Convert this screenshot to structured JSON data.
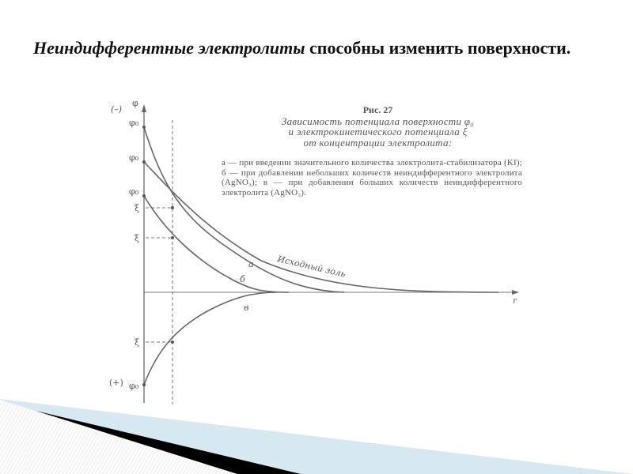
{
  "slide": {
    "title_italic": "Неиндифферентные электролиты",
    "title_rest": " способны изменить поверхности."
  },
  "figure": {
    "number": "Рис. 27",
    "caption_lines": [
      "Зависимость потенциала поверхности φ₀",
      "и электрокинетического потенциала ξ",
      "от концентрации электролита:"
    ],
    "description": "а — при введении значительного количества электролита-стабилизатора (KI); б — при добавлении небольших количеств неиндифферентного электролита (AgNO₃); в — при добавлении больших количеств неиндифферентного электролита (AgNO₃).",
    "axis_y_label": "φ",
    "axis_x_label": "r",
    "sign_negative": "(–)",
    "sign_positive": "(+)",
    "phi0_label": "φ₀",
    "xi_label": "ξ",
    "curve_labels": {
      "a": "а",
      "b": "б",
      "v": "в",
      "initial": "Исходный золь"
    }
  },
  "colors": {
    "line": "#666666",
    "decor_blue": "#d6e8f0",
    "decor_black": "#000000"
  }
}
